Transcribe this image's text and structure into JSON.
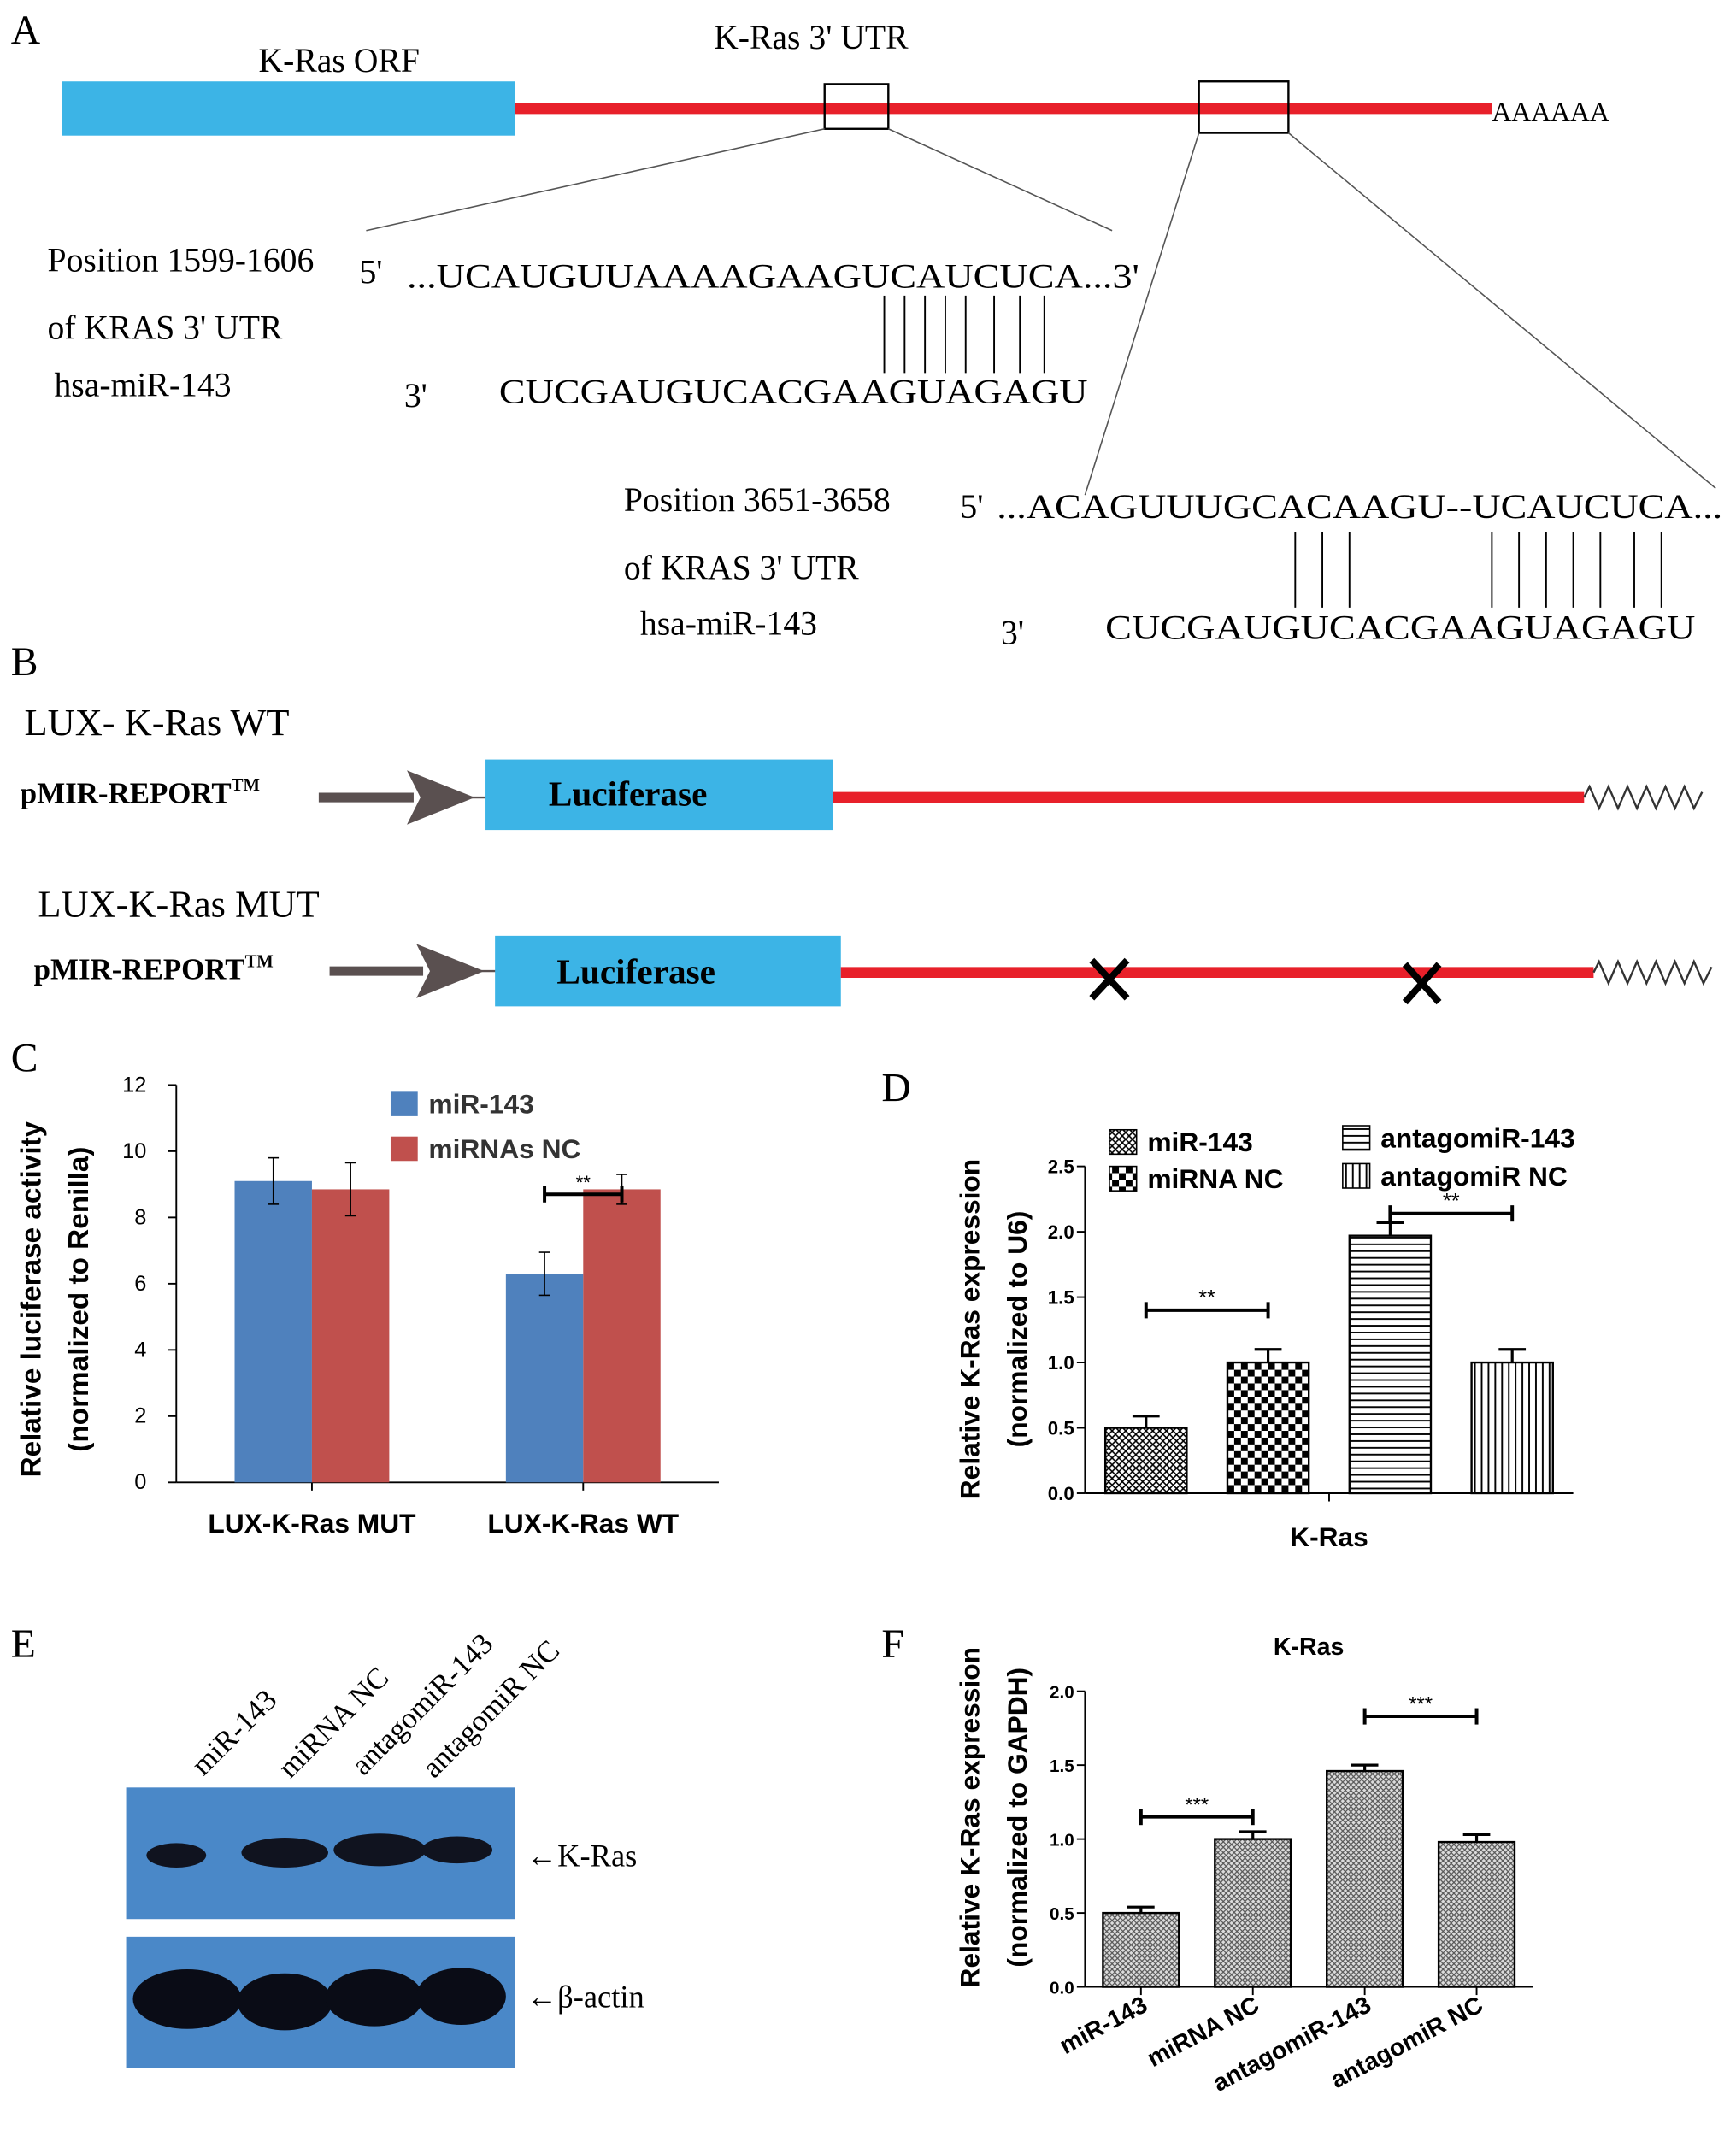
{
  "panel_a": {
    "label": "A",
    "orf": "K-Ras ORF",
    "utr": "K-Ras  3' UTR",
    "poly_a": "AAAAAA",
    "sites": [
      {
        "position": "Position 1599-1606",
        "of": "of KRAS 3' UTR",
        "mirna": "hsa-miR-143",
        "five_prime": "5'",
        "target": "...UCAUGUUAAAAGAAGUCAUCUCA...3'",
        "three_prime": "3'",
        "mirna_seq": "CUCGAUGUCACGAAGUAGAGU"
      },
      {
        "position": "Position 3651-3658",
        "of": "of KRAS 3' UTR",
        "mirna": "hsa-miR-143",
        "five_prime": "5'",
        "target": "...ACAGUUUGCACAAGU--UCAUCUCA...",
        "three_prime": "3'",
        "mirna_seq": "CUCGAUGUCACGAAGUAGAGU"
      }
    ]
  },
  "panel_b": {
    "label": "B",
    "constructs": [
      {
        "name": "LUX- K-Ras WT",
        "vector": "pMIR-REPORT",
        "tm": "TM",
        "gene": "Luciferase"
      },
      {
        "name": "LUX-K-Ras  MUT",
        "vector": "pMIR-REPORT",
        "tm": "TM",
        "gene": "Luciferase"
      }
    ]
  },
  "panel_e": {
    "label": "E",
    "lanes": [
      "miR-143",
      "miRNA NC",
      "antagomiR-143",
      "antagomiR NC"
    ],
    "bands": [
      "←K-Ras",
      "←β-actin"
    ]
  },
  "chart_data": [
    {
      "type": "bar",
      "panel_label": "C",
      "ylabel": [
        "Relative luciferase activity",
        "(normalized to Renilla)"
      ],
      "categories": [
        "LUX-K-Ras  MUT",
        "LUX-K-Ras WT"
      ],
      "series": [
        {
          "name": "miR-143",
          "color": "#4f81bd",
          "values": [
            9.1,
            6.3
          ],
          "errors": [
            0.7,
            0.65
          ]
        },
        {
          "name": "miRNAs NC",
          "color": "#c0504d",
          "values": [
            8.85,
            8.85
          ],
          "errors": [
            0.8,
            0.45
          ]
        }
      ],
      "ylim": [
        0,
        12
      ],
      "yticks": [
        0,
        2,
        4,
        6,
        8,
        10,
        12
      ],
      "annotations": [
        {
          "text": "**",
          "from": 2,
          "to": 3,
          "y": 8.7
        }
      ]
    },
    {
      "type": "bar",
      "panel_label": "D",
      "ylabel": [
        "Relative K-Ras expression",
        "(normalized to U6)"
      ],
      "xlabel": "K-Ras",
      "categories": [
        null
      ],
      "series": [
        {
          "name": "miR-143",
          "color": "#000000",
          "pattern": "crosshatch",
          "values": [
            0.5
          ],
          "errors": [
            0.09
          ]
        },
        {
          "name": "miRNA NC",
          "color": "#000000",
          "pattern": "checker",
          "values": [
            1.0
          ],
          "errors": [
            0.1
          ]
        },
        {
          "name": "antagomiR-143",
          "color": "#000000",
          "pattern": "hlines",
          "values": [
            1.97
          ],
          "errors": [
            0.1
          ]
        },
        {
          "name": "antagomiR NC",
          "color": "#000000",
          "pattern": "vlines",
          "values": [
            1.0
          ],
          "errors": [
            0.1
          ]
        }
      ],
      "ylim": [
        0,
        2.5
      ],
      "yticks": [
        {
          "value": 0,
          "label": "0.0"
        },
        0.5,
        {
          "value": 1,
          "label": "1.0"
        },
        1.5,
        {
          "value": 2,
          "label": "2.0"
        },
        2.5
      ],
      "annotations": [
        {
          "text": "**",
          "from": 0,
          "to": 1,
          "y": 1.4
        },
        {
          "text": "**",
          "from": 2,
          "to": 3,
          "y": 2.14
        }
      ]
    },
    {
      "type": "bar",
      "panel_label": "F",
      "title": "K-Ras",
      "ylabel": [
        "Relative K-Ras expression",
        "(normalized to GAPDH)"
      ],
      "categories": [
        "miR-143",
        "miRNA NC",
        "antagomiR-143",
        "antagomiR NC"
      ],
      "values": [
        0.5,
        1.0,
        1.46,
        0.98
      ],
      "errors": [
        0.04,
        0.05,
        0.04,
        0.05
      ],
      "color": "#000000",
      "pattern": "dots",
      "ylim": [
        0,
        2.0
      ],
      "yticks": [
        {
          "value": 0,
          "label": "0.0"
        },
        0.5,
        {
          "value": 1,
          "label": "1.0"
        },
        1.5,
        {
          "value": 2,
          "label": "2.0"
        }
      ],
      "annotations": [
        {
          "text": "***",
          "from": 0,
          "to": 1,
          "y": 1.15
        },
        {
          "text": "***",
          "from": 2,
          "to": 3,
          "y": 1.83
        }
      ]
    }
  ]
}
